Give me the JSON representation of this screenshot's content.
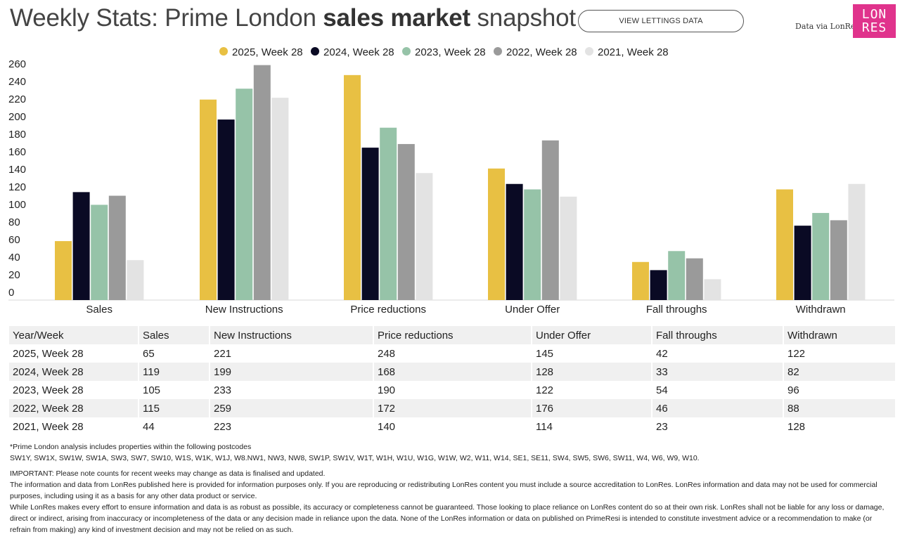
{
  "header": {
    "title_pre": "Weekly Stats: Prime London ",
    "title_bold": "sales market",
    "title_post": " snapshot",
    "lettings_button": "VIEW LETTINGS DATA",
    "data_via": "Data via LonRes",
    "logo_line1": "LON",
    "logo_line2": "RES",
    "logo_color": "#e0338c"
  },
  "chart_data": {
    "type": "bar",
    "categories": [
      "Sales",
      "New Instructions",
      "Price reductions",
      "Under Offer",
      "Fall throughs",
      "Withdrawn"
    ],
    "series": [
      {
        "name": "2025, Week 28",
        "color": "#e8c043",
        "values": [
          65,
          221,
          248,
          145,
          42,
          122
        ]
      },
      {
        "name": "2024, Week 28",
        "color": "#0a0a24",
        "values": [
          119,
          199,
          168,
          128,
          33,
          82
        ]
      },
      {
        "name": "2023, Week 28",
        "color": "#96c3a8",
        "values": [
          105,
          233,
          190,
          122,
          54,
          96
        ]
      },
      {
        "name": "2022, Week 28",
        "color": "#9a9a9a",
        "values": [
          115,
          259,
          172,
          176,
          46,
          88
        ]
      },
      {
        "name": "2021, Week 28",
        "color": "#e3e3e3",
        "values": [
          44,
          223,
          140,
          114,
          23,
          128
        ]
      }
    ],
    "yticks": [
      0,
      20,
      40,
      60,
      80,
      100,
      120,
      140,
      160,
      180,
      200,
      220,
      240,
      260
    ],
    "ylim": [
      0,
      260
    ],
    "legend_position": "top",
    "grid": false
  },
  "table": {
    "headers": [
      "Year/Week",
      "Sales",
      "New Instructions",
      "Price reductions",
      "Under Offer",
      "Fall throughs",
      "Withdrawn"
    ],
    "rows": [
      [
        "2025, Week 28",
        "65",
        "221",
        "248",
        "145",
        "42",
        "122"
      ],
      [
        "2024, Week 28",
        "119",
        "199",
        "168",
        "128",
        "33",
        "82"
      ],
      [
        "2023, Week 28",
        "105",
        "233",
        "190",
        "122",
        "54",
        "96"
      ],
      [
        "2022, Week 28",
        "115",
        "259",
        "172",
        "176",
        "46",
        "88"
      ],
      [
        "2021, Week 28",
        "44",
        "223",
        "140",
        "114",
        "23",
        "128"
      ]
    ]
  },
  "notes": {
    "postcodes_intro": "*Prime London analysis includes properties within the following postcodes",
    "postcodes": "SW1Y, SW1X, SW1W, SW1A, SW3, SW7, SW10, W1S, W1K, W1J, W8.NW1, NW3, NW8, SW1P, SW1V, W1T, W1H, W1U, W1G, W1W, W2, W11, W14, SE1, SE11, SW4, SW5, SW6, SW11, W4, W6, W9, W10.",
    "important": "IMPORTANT: Please note counts for recent weeks may change as data is finalised and updated.",
    "info": "The information and data from LonRes published here is provided for information purposes only. If you are reproducing or redistributing LonRes content you must include a source accreditation to LonRes. LonRes information and data may not be used for commercial purposes, including using it as a basis for any other data product or service.",
    "disclaimer": "While LonRes makes every effort to ensure information and data is as robust as possible, its accuracy or completeness cannot be guaranteed. Those looking to place reliance on LonRes content do so at their own risk. LonRes shall not be liable for any loss or damage, direct or indirect, arising from inaccuracy or incompleteness of the data or any decision made in reliance upon the data. None of the LonRes information or data on published on PrimeResi is intended to constitute investment advice or a recommendation to make (or refrain from making) any kind of investment decision and may not be relied on as such."
  }
}
